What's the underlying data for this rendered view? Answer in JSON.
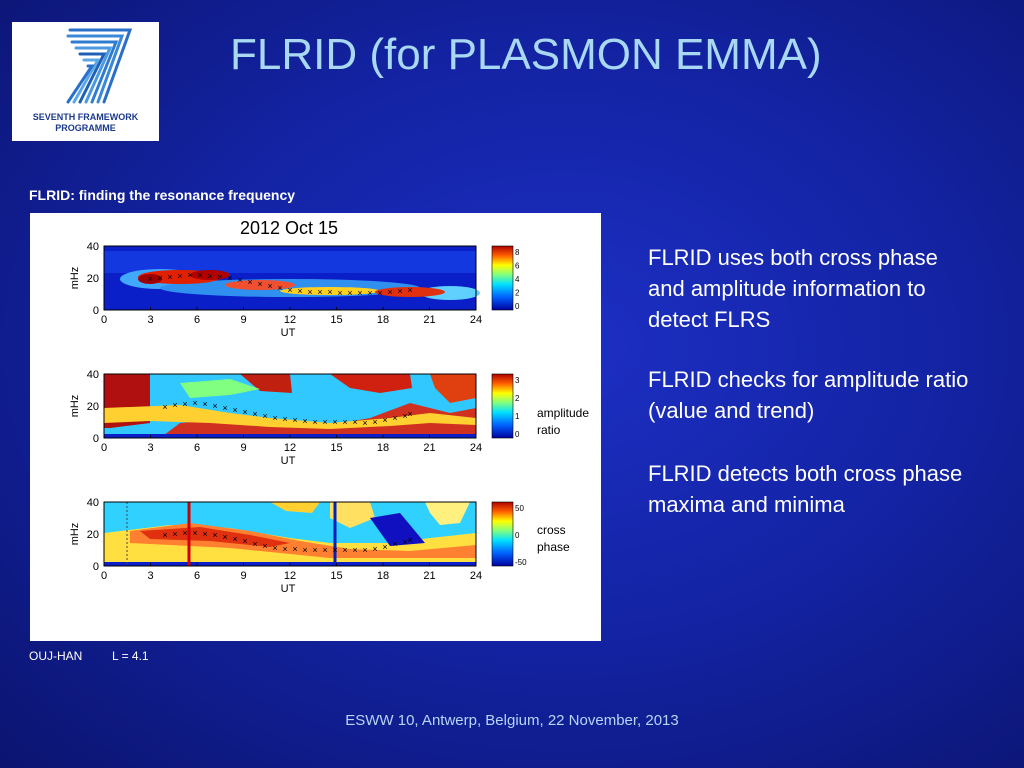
{
  "slide": {
    "title": "FLRID (for PLASMON EMMA)",
    "logo": {
      "line1": "SEVENTH FRAMEWORK",
      "line2": "PROGRAMME",
      "icon": "fp7-logo"
    },
    "figure_caption": "FLRID: finding the resonance frequency",
    "figure": {
      "date_title": "2012 Oct 15",
      "x_axis_label": "UT",
      "x_ticks": [
        "0",
        "3",
        "6",
        "9",
        "12",
        "15",
        "18",
        "21",
        "24"
      ],
      "y_axis_label": "mHz",
      "y_ticks": [
        "0",
        "20",
        "40"
      ],
      "panels": [
        {
          "colorbar_ticks": [
            "8",
            "6",
            "4",
            "2",
            "0"
          ],
          "side_label_1": "",
          "side_label_2": ""
        },
        {
          "colorbar_ticks": [
            "3",
            "2",
            "1",
            "0"
          ],
          "side_label_1": "amplitude",
          "side_label_2": "ratio"
        },
        {
          "colorbar_ticks": [
            "50",
            "0",
            "-50"
          ],
          "side_label_1": "cross",
          "side_label_2": "phase"
        }
      ]
    },
    "station": "OUJ-HAN",
    "lshell": "L = 4.1",
    "bullets": [
      "FLRID uses both cross phase and amplitude information to detect  FLRS",
      "FLRID checks for amplitude ratio (value and trend)",
      "FLRID detects both cross phase maxima and minima"
    ],
    "footer": "ESWW 10, Antwerp, Belgium, 22 November, 2013"
  }
}
